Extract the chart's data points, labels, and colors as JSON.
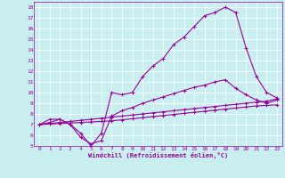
{
  "xlabel": "Windchill (Refroidissement éolien,°C)",
  "bg_color": "#c8eef0",
  "grid_color": "#ffffff",
  "line_color": "#990099",
  "xlim": [
    -0.5,
    23.5
  ],
  "ylim": [
    5,
    18.5
  ],
  "yticks": [
    5,
    6,
    7,
    8,
    9,
    10,
    11,
    12,
    13,
    14,
    15,
    16,
    17,
    18
  ],
  "xticks": [
    0,
    1,
    2,
    3,
    4,
    5,
    6,
    7,
    8,
    9,
    10,
    11,
    12,
    13,
    14,
    15,
    16,
    17,
    18,
    19,
    20,
    21,
    22,
    23
  ],
  "curve1_x": [
    0,
    1,
    2,
    3,
    4,
    5,
    6,
    7,
    8,
    9,
    10,
    11,
    12,
    13,
    14,
    15,
    16,
    17,
    18,
    19,
    20,
    21,
    22,
    23
  ],
  "curve1_y": [
    7.0,
    7.5,
    7.5,
    7.0,
    6.2,
    5.0,
    6.2,
    10.0,
    9.8,
    10.0,
    11.5,
    12.5,
    13.2,
    14.5,
    15.2,
    16.2,
    17.2,
    17.5,
    18.0,
    17.5,
    14.2,
    11.5,
    10.0,
    9.5
  ],
  "curve2_x": [
    0,
    1,
    2,
    3,
    4,
    5,
    6,
    7,
    8,
    9,
    10,
    11,
    12,
    13,
    14,
    15,
    16,
    17,
    18,
    19,
    20,
    21,
    22,
    23
  ],
  "curve2_y": [
    7.0,
    7.2,
    7.5,
    7.0,
    5.8,
    5.2,
    5.5,
    7.8,
    8.3,
    8.6,
    9.0,
    9.3,
    9.6,
    9.9,
    10.2,
    10.5,
    10.7,
    11.0,
    11.2,
    10.4,
    9.8,
    9.3,
    9.0,
    9.3
  ],
  "curve3_x": [
    0,
    1,
    2,
    3,
    4,
    5,
    6,
    7,
    8,
    9,
    10,
    11,
    12,
    13,
    14,
    15,
    16,
    17,
    18,
    19,
    20,
    21,
    22,
    23
  ],
  "curve3_y": [
    7.0,
    7.1,
    7.2,
    7.3,
    7.4,
    7.5,
    7.6,
    7.7,
    7.8,
    7.9,
    8.0,
    8.1,
    8.2,
    8.3,
    8.4,
    8.5,
    8.6,
    8.7,
    8.8,
    8.9,
    9.0,
    9.1,
    9.2,
    9.4
  ],
  "curve4_x": [
    0,
    1,
    2,
    3,
    4,
    5,
    6,
    7,
    8,
    9,
    10,
    11,
    12,
    13,
    14,
    15,
    16,
    17,
    18,
    19,
    20,
    21,
    22,
    23
  ],
  "curve4_y": [
    7.0,
    7.05,
    7.1,
    7.15,
    7.2,
    7.25,
    7.3,
    7.35,
    7.45,
    7.55,
    7.65,
    7.75,
    7.85,
    7.95,
    8.05,
    8.15,
    8.25,
    8.35,
    8.45,
    8.55,
    8.65,
    8.75,
    8.8,
    8.85
  ]
}
